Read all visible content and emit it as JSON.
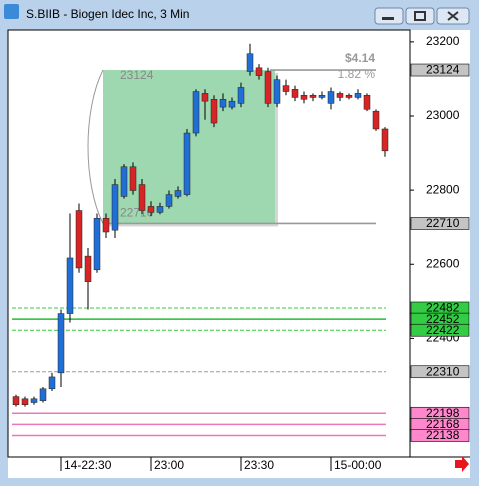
{
  "window": {
    "title": "S.BIIB - Biogen Idec Inc, 3 Min"
  },
  "chart_data": {
    "type": "candlestick",
    "categories": [
      null,
      null,
      null,
      null,
      null,
      "14-22:30",
      null,
      null,
      null,
      null,
      null,
      null,
      null,
      null,
      null,
      "23:00",
      null,
      null,
      null,
      null,
      null,
      null,
      null,
      null,
      null,
      "23:30",
      null,
      null,
      null,
      null,
      null,
      null,
      null,
      null,
      null,
      "15-00:00",
      null,
      null,
      null,
      null,
      null,
      null
    ],
    "open": [
      22243,
      22237,
      22227,
      22232,
      22264,
      22307,
      22467,
      22745,
      22622,
      22585,
      22724,
      22692,
      22783,
      22863,
      22815,
      22756,
      22740,
      22756,
      22783,
      22788,
      22954,
      23061,
      23045,
      23024,
      23024,
      23034,
      23120,
      23130,
      23120,
      23034,
      23082,
      23072,
      23056,
      23056,
      23050,
      23034,
      23061,
      23056,
      23050,
      23056,
      23013,
      22965
    ],
    "high": [
      22248,
      22243,
      22243,
      22269,
      22307,
      22478,
      22737,
      22764,
      22644,
      22737,
      22737,
      22830,
      22870,
      22875,
      22830,
      22770,
      22766,
      22799,
      22810,
      22965,
      23072,
      23072,
      23056,
      23061,
      23050,
      23090,
      23195,
      23140,
      23130,
      23109,
      23098,
      23082,
      23066,
      23061,
      23066,
      23077,
      23066,
      23061,
      23072,
      23061,
      23018,
      22970
    ],
    "low": [
      22216,
      22216,
      22221,
      22227,
      22258,
      22269,
      22443,
      22577,
      22478,
      22577,
      22671,
      22671,
      22777,
      22788,
      22735,
      22730,
      22735,
      22750,
      22777,
      22783,
      22945,
      22990,
      22970,
      23013,
      23018,
      23024,
      23109,
      23098,
      23024,
      23024,
      23056,
      23040,
      23034,
      23040,
      23045,
      23018,
      23040,
      23045,
      23045,
      23013,
      22960,
      22890
    ],
    "close": [
      22221,
      22221,
      22237,
      22264,
      22296,
      22467,
      22617,
      22590,
      22553,
      22724,
      22687,
      22815,
      22863,
      22799,
      22745,
      22740,
      22756,
      22788,
      22799,
      22954,
      23066,
      23040,
      22981,
      23045,
      23040,
      23077,
      23168,
      23109,
      23034,
      23098,
      23066,
      23050,
      23045,
      23050,
      23056,
      23066,
      23050,
      23050,
      23061,
      23018,
      22965,
      22906
    ],
    "up_color": "#1f6fd6",
    "down_color": "#d82424",
    "ylim": [
      22080,
      23232
    ],
    "yticks": [
      23200,
      23000,
      22800,
      22600,
      22400
    ],
    "levels": [
      {
        "value": 23124,
        "color": "#c4c4c4",
        "line": "#9a9a9a",
        "dash": false
      },
      {
        "value": 22710,
        "color": "#c4c4c4",
        "line": "#9a9a9a",
        "dash": false
      },
      {
        "value": 22482,
        "color": "#33cc44",
        "line": "#33cc44",
        "dash": true
      },
      {
        "value": 22452,
        "color": "#33cc44",
        "line": "#22bb33",
        "dash": false
      },
      {
        "value": 22422,
        "color": "#33cc44",
        "line": "#33cc44",
        "dash": true
      },
      {
        "value": 22310,
        "color": "#c4c4c4",
        "line": "#999999",
        "dash": true
      },
      {
        "value": 22198,
        "color": "#ff88cc",
        "line": "#ee77bb",
        "dash": false
      },
      {
        "value": 22168,
        "color": "#ff88cc",
        "line": "#ee77bb",
        "dash": false
      },
      {
        "value": 22138,
        "color": "#ff88cc",
        "line": "#ee77bb",
        "dash": false
      }
    ],
    "measure": {
      "high": 23124,
      "low": 22710,
      "change": "$4.14",
      "percent": "1.82 %"
    }
  }
}
